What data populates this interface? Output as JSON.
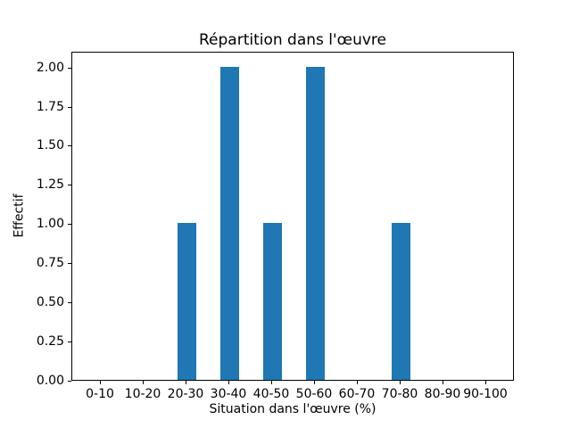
{
  "chart_data": {
    "type": "bar",
    "title": "Répartition dans l'œuvre",
    "xlabel": "Situation dans l'œuvre (%)",
    "ylabel": "Effectif",
    "categories": [
      "0-10",
      "10-20",
      "20-30",
      "30-40",
      "40-50",
      "50-60",
      "60-70",
      "70-80",
      "80-90",
      "90-100"
    ],
    "values": [
      0,
      0,
      1,
      2,
      1,
      2,
      0,
      1,
      0,
      0
    ],
    "ytick_labels": [
      "0.00",
      "0.25",
      "0.50",
      "0.75",
      "1.00",
      "1.25",
      "1.50",
      "1.75",
      "2.00"
    ],
    "ytick_values": [
      0,
      0.25,
      0.5,
      0.75,
      1.0,
      1.25,
      1.5,
      1.75,
      2.0
    ],
    "ylim": [
      0,
      2.1
    ],
    "bar_color": "#1f77b4",
    "axis_color": "#000000",
    "background_color": "#ffffff",
    "grid": false,
    "legend": "none"
  }
}
